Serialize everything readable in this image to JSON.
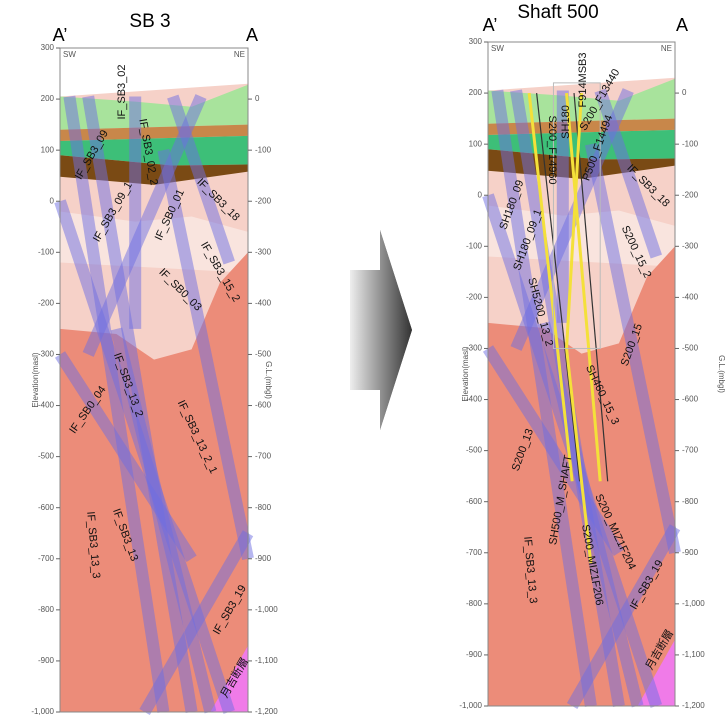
{
  "panels": [
    {
      "title": "SB 3",
      "corner_left": "A’",
      "corner_right": "A",
      "direction_left": "SW",
      "direction_right": "NE",
      "y_axis_label": "Elevation(masl)",
      "y2_axis_label": "G.L.(mbgl)",
      "elevation_ticks": [
        300,
        200,
        100,
        0,
        -100,
        -200,
        -300,
        -400,
        -500,
        -600,
        -700,
        -800,
        -900,
        {
          "value": -1000,
          "label": "-1,000"
        }
      ],
      "depth_ticks": [
        0,
        -100,
        -200,
        -300,
        -400,
        -500,
        -600,
        -700,
        -800,
        -900,
        {
          "value": -1000,
          "label": "-1,000"
        },
        {
          "value": -1100,
          "label": "-1,100"
        },
        {
          "value": -1200,
          "label": "-1,200"
        }
      ],
      "fault_labels": [
        "IF_SB3_02",
        "IF_SB3_09",
        "IF_SB3_02_2",
        "IF_SB3_09_1",
        "IF_SB0_01",
        "IF_SB3_18",
        "IF_SB0_03",
        "IF_SB3_15_2",
        "IF_SB0_04",
        "IF_SB3_13_2",
        "IF_SB3_13_2_1",
        "IF_SB3_13_3",
        "IF_SB3_13",
        "IF_SB3_19",
        "月吉断層"
      ]
    },
    {
      "title": "Shaft 500",
      "corner_left": "A’",
      "corner_right": "A",
      "direction_left": "SW",
      "direction_right": "NE",
      "y_axis_label": "Elevation(masl)",
      "y2_axis_label": "G.L.(mbgl)",
      "elevation_ticks": [
        300,
        200,
        100,
        0,
        -100,
        -200,
        -300,
        -400,
        -500,
        -600,
        -700,
        -800,
        -900,
        {
          "value": -1000,
          "label": "-1,000"
        }
      ],
      "depth_ticks": [
        0,
        -100,
        -200,
        -300,
        -400,
        -500,
        -600,
        -700,
        -800,
        -900,
        {
          "value": -1000,
          "label": "-1,000"
        },
        {
          "value": -1100,
          "label": "-1,100"
        },
        {
          "value": -1200,
          "label": "-1,200"
        }
      ],
      "fault_labels": [
        "SH180_09",
        "F914MSB3",
        "SH180",
        "S200_F13440",
        "S200_F14960",
        "P500_F14494",
        "IF_SB3_18",
        "SH180_09_1",
        "S200_15_2",
        "SH5200_13_2",
        "S200_15",
        "SH460_15_3",
        "S200_13",
        "SH500_M_SHAFT",
        "S200_MIZ1F204",
        "S200_MIZ1F206",
        "IF_SB3_13_3",
        "IF_SB3_19",
        "月吉断層"
      ]
    }
  ]
}
